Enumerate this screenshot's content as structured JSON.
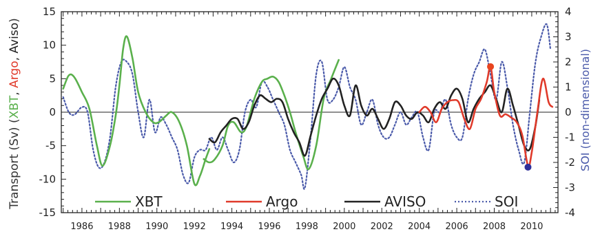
{
  "chart_data": {
    "type": "line",
    "x_range": [
      1984.9,
      2011.4
    ],
    "x_ticks": [
      1986,
      1988,
      1990,
      1992,
      1994,
      1996,
      1998,
      2000,
      2002,
      2004,
      2006,
      2008,
      2010
    ],
    "y_left": {
      "range": [
        -15,
        15
      ],
      "ticks": [
        -15,
        -10,
        -5,
        0,
        5,
        10,
        15
      ]
    },
    "y_right": {
      "range": [
        -4,
        4
      ],
      "ticks": [
        -4,
        -3,
        -2,
        -1,
        0,
        1,
        2,
        3,
        4
      ]
    },
    "ylabel_left": {
      "prefix": "Transport (Sv) (",
      "parts": [
        {
          "text": "XBT",
          "color": "#5ab04c"
        },
        {
          "text": ", ",
          "color": "#333333"
        },
        {
          "text": "Argo",
          "color": "#e03a2a"
        },
        {
          "text": ", ",
          "color": "#333333"
        },
        {
          "text": "Aviso",
          "color": "#222222"
        }
      ],
      "suffix": ")"
    },
    "ylabel_right": "SOI (non-dimensional)",
    "zero_line": true,
    "legend_placement": "bottom",
    "series": [
      {
        "name": "XBT",
        "color": "#5ab04c",
        "axis": "left",
        "style": "solid",
        "x": [
          1985.0,
          1985.3,
          1985.6,
          1986.0,
          1986.4,
          1986.8,
          1987.1,
          1987.5,
          1987.8,
          1988.0,
          1988.2,
          1988.4,
          1988.7,
          1989.0,
          1989.4,
          1989.8,
          1990.1,
          1990.5,
          1990.8,
          1991.2,
          1991.6,
          1992.0,
          1992.3,
          1992.6,
          1992.8
        ],
        "y": [
          3.5,
          5.5,
          5.2,
          3.0,
          0.5,
          -5.0,
          -8.0,
          -5.0,
          -0.5,
          4.0,
          9.5,
          11.3,
          8.0,
          3.0,
          0.0,
          -1.5,
          -1.5,
          -0.5,
          0.0,
          -1.5,
          -5.0,
          -10.7,
          -9.5,
          -7.0,
          -5.5
        ]
      },
      {
        "name": "XBT",
        "color": "#5ab04c",
        "axis": "left",
        "style": "solid",
        "x": [
          1992.5,
          1992.8,
          1993.1,
          1993.5,
          1993.8,
          1994.1,
          1994.5,
          1994.8,
          1995.2,
          1995.6,
          1995.9,
          1996.2,
          1996.5,
          1996.8,
          1997.1,
          1997.4,
          1997.8,
          1998.1,
          1998.5,
          1998.9,
          1999.3,
          1999.7
        ],
        "y": [
          -7.0,
          -7.5,
          -7.0,
          -5.0,
          -2.0,
          -1.5,
          -3.0,
          -2.0,
          2.0,
          4.5,
          5.0,
          5.3,
          4.5,
          2.5,
          0.0,
          -3.0,
          -6.5,
          -8.5,
          -5.0,
          2.0,
          5.0,
          7.8
        ]
      },
      {
        "name": "Argo",
        "color": "#e03a2a",
        "axis": "left",
        "style": "solid",
        "x": [
          2004.0,
          2004.3,
          2004.6,
          2004.9,
          2005.2,
          2005.5,
          2005.8,
          2006.1,
          2006.4,
          2006.7,
          2007.0,
          2007.3,
          2007.6,
          2007.8,
          2008.0,
          2008.3,
          2008.6,
          2008.9,
          2009.2,
          2009.5,
          2009.8,
          2010.0,
          2010.3,
          2010.6,
          2010.9,
          2011.1
        ],
        "y": [
          0.0,
          0.8,
          0.0,
          -1.5,
          0.5,
          1.5,
          1.8,
          1.5,
          -1.0,
          -2.5,
          0.5,
          2.0,
          4.5,
          6.8,
          3.0,
          -0.5,
          -0.3,
          -0.8,
          -1.5,
          -3.5,
          -8.0,
          -6.0,
          0.0,
          5.0,
          1.5,
          0.8
        ]
      },
      {
        "name": "AVISO",
        "color": "#222222",
        "axis": "left",
        "style": "solid",
        "x": [
          1992.8,
          1993.1,
          1993.4,
          1993.7,
          1994.0,
          1994.3,
          1994.6,
          1994.9,
          1995.2,
          1995.5,
          1995.8,
          1996.1,
          1996.4,
          1996.7,
          1997.0,
          1997.3,
          1997.6,
          1997.9,
          1998.2,
          1998.5,
          1998.8,
          1999.1,
          1999.4,
          1999.7,
          2000.0,
          2000.3,
          2000.6,
          2000.9,
          2001.2,
          2001.5,
          2001.8,
          2002.1,
          2002.4,
          2002.7,
          2003.0,
          2003.3,
          2003.6,
          2003.9,
          2004.2,
          2004.5,
          2004.8,
          2005.1,
          2005.4,
          2005.7,
          2006.0,
          2006.3,
          2006.6,
          2006.9,
          2007.2,
          2007.5,
          2007.8,
          2008.1,
          2008.4,
          2008.7,
          2009.0,
          2009.3,
          2009.6,
          2009.9,
          2010.2,
          2010.4
        ],
        "y": [
          -4.0,
          -4.5,
          -3.0,
          -2.0,
          -1.0,
          -1.0,
          -2.5,
          -1.5,
          1.0,
          2.5,
          2.0,
          1.5,
          2.0,
          1.5,
          -1.0,
          -3.0,
          -4.5,
          -6.5,
          -3.5,
          -0.5,
          2.0,
          3.5,
          5.0,
          4.0,
          1.0,
          -0.5,
          4.0,
          1.0,
          -0.5,
          0.5,
          -1.0,
          -2.5,
          -1.0,
          1.5,
          1.0,
          -0.5,
          -1.0,
          0.0,
          -0.5,
          -1.5,
          0.5,
          1.5,
          0.5,
          2.5,
          3.5,
          2.0,
          -1.5,
          0.5,
          2.0,
          3.0,
          4.0,
          2.0,
          0.0,
          3.5,
          1.0,
          -2.0,
          -5.0,
          -5.5,
          -2.0,
          1.8
        ]
      },
      {
        "name": "SOI",
        "color": "#4a5aaa",
        "axis": "right",
        "style": "dotted",
        "x": [
          1985.0,
          1985.3,
          1985.6,
          1986.0,
          1986.3,
          1986.6,
          1986.9,
          1987.2,
          1987.5,
          1987.8,
          1988.1,
          1988.4,
          1988.7,
          1989.0,
          1989.3,
          1989.6,
          1989.9,
          1990.2,
          1990.5,
          1990.8,
          1991.1,
          1991.4,
          1991.7,
          1992.0,
          1992.3,
          1992.6,
          1992.9,
          1993.2,
          1993.5,
          1993.8,
          1994.1,
          1994.4,
          1994.7,
          1995.0,
          1995.3,
          1995.6,
          1995.9,
          1996.2,
          1996.5,
          1996.8,
          1997.1,
          1997.4,
          1997.7,
          1997.9,
          1998.2,
          1998.5,
          1998.8,
          1999.1,
          1999.4,
          1999.7,
          2000.0,
          2000.3,
          2000.6,
          2000.9,
          2001.2,
          2001.5,
          2001.8,
          2002.1,
          2002.4,
          2002.7,
          2003.0,
          2003.3,
          2003.6,
          2003.9,
          2004.2,
          2004.5,
          2004.8,
          2005.1,
          2005.4,
          2005.7,
          2006.0,
          2006.3,
          2006.6,
          2006.9,
          2007.2,
          2007.5,
          2007.8,
          2008.1,
          2008.4,
          2008.7,
          2009.0,
          2009.3,
          2009.6,
          2009.9,
          2010.2,
          2010.5,
          2010.8,
          2011.0
        ],
        "y": [
          0.6,
          0.0,
          -0.1,
          0.2,
          0.0,
          -1.5,
          -2.2,
          -2.0,
          -1.0,
          1.0,
          2.0,
          2.0,
          1.5,
          0.0,
          -1.0,
          0.5,
          -0.8,
          -0.2,
          -0.5,
          -1.0,
          -1.5,
          -2.5,
          -2.8,
          -1.8,
          -1.5,
          -1.5,
          -1.0,
          -1.5,
          -1.0,
          -1.5,
          -2.0,
          -1.5,
          0.0,
          0.5,
          0.2,
          1.2,
          1.0,
          0.5,
          0.0,
          -0.5,
          -1.5,
          -2.0,
          -2.5,
          -3.0,
          -1.0,
          1.5,
          2.0,
          0.5,
          0.5,
          1.0,
          1.8,
          1.0,
          0.5,
          -0.5,
          0.0,
          0.5,
          -0.5,
          -1.0,
          -1.0,
          -0.5,
          0.0,
          -0.5,
          -0.2,
          0.0,
          -1.0,
          -1.5,
          0.0,
          0.0,
          0.5,
          -0.5,
          -1.0,
          -1.0,
          0.5,
          1.5,
          2.0,
          2.5,
          1.5,
          0.5,
          2.0,
          1.0,
          -0.5,
          -1.5,
          -2.0,
          0.0,
          2.0,
          3.0,
          3.5,
          2.5
        ]
      }
    ],
    "markers": [
      {
        "x": 2007.8,
        "y": 6.8,
        "color": "#e8451f",
        "axis": "left"
      },
      {
        "x": 2009.8,
        "y": -8.2,
        "color": "#2f2f9a",
        "axis": "left"
      }
    ],
    "legend": [
      {
        "label": "XBT",
        "color": "#5ab04c",
        "style": "solid"
      },
      {
        "label": "Argo",
        "color": "#e03a2a",
        "style": "solid"
      },
      {
        "label": "AVISO",
        "color": "#222222",
        "style": "solid"
      },
      {
        "label": "SOI",
        "color": "#4a5aaa",
        "style": "dotted"
      }
    ]
  }
}
